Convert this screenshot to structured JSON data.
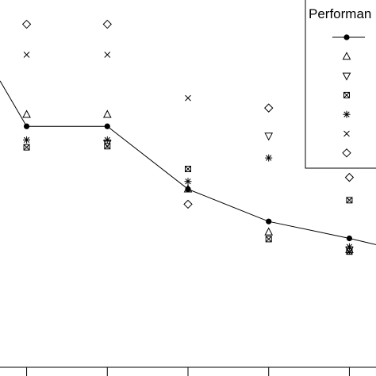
{
  "chart_data": {
    "type": "scatter",
    "title": "",
    "xlabel": "",
    "ylabel": "",
    "x": [
      0,
      1,
      2,
      3,
      4
    ],
    "xlim": [
      -0.33,
      4.33
    ],
    "ylim": [
      0,
      10
    ],
    "grid": false,
    "legend": {
      "title": "Performan",
      "placement": "top-right"
    },
    "series": [
      {
        "marker": "filled-circle",
        "line": true,
        "values": [
          6.56,
          6.56,
          4.85,
          3.97,
          3.51
        ],
        "line_start": {
          "x": -0.33,
          "y": 7.8
        },
        "line_end": {
          "x": 4.33,
          "y": 3.34
        }
      },
      {
        "marker": "triangle-up",
        "line": false,
        "values": [
          6.88,
          6.88,
          4.85,
          3.68,
          3.2
        ]
      },
      {
        "marker": "triangle-down",
        "line": false,
        "values": null
      },
      {
        "marker": "boxed-x",
        "line": false,
        "values": [
          5.99,
          6.02,
          5.4,
          3.49,
          4.55
        ]
      },
      {
        "marker": "asterisk",
        "line": false,
        "values": [
          6.19,
          6.19,
          5.06,
          5.7,
          3.28
        ]
      },
      {
        "marker": "x",
        "line": false,
        "values": [
          8.51,
          8.51,
          7.33,
          null,
          null
        ]
      },
      {
        "marker": "diamond",
        "line": false,
        "values": [
          9.34,
          9.34,
          4.44,
          7.06,
          5.17
        ]
      }
    ],
    "extra_points": [
      {
        "series_index": 2,
        "x": 1,
        "y": 6.1
      },
      {
        "series_index": 2,
        "x": 3,
        "y": 6.3
      },
      {
        "series_index": 2,
        "x": 4,
        "y": 3.2
      },
      {
        "series_index": 3,
        "x": 4,
        "y": 3.15
      }
    ]
  }
}
